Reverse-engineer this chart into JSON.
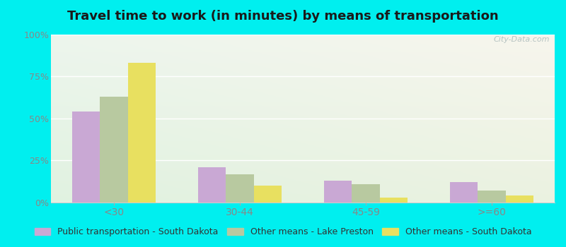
{
  "title": "Travel time to work (in minutes) by means of transportation",
  "categories": [
    "<30",
    "30-44",
    "45-59",
    ">=60"
  ],
  "series": [
    {
      "name": "Public transportation - South Dakota",
      "color": "#c9a8d4",
      "values": [
        54,
        21,
        13,
        12
      ]
    },
    {
      "name": "Other means - Lake Preston",
      "color": "#b8c9a0",
      "values": [
        63,
        17,
        11,
        7
      ]
    },
    {
      "name": "Other means - South Dakota",
      "color": "#e8e060",
      "values": [
        83,
        10,
        3,
        4
      ]
    }
  ],
  "ylim": [
    0,
    100
  ],
  "yticks": [
    0,
    25,
    50,
    75,
    100
  ],
  "ytick_labels": [
    "0%",
    "25%",
    "50%",
    "75%",
    "100%"
  ],
  "bg_color_topleft": "#e0f0e8",
  "bg_color_bottomright": "#f8fff4",
  "outer_background": "#00EFEF",
  "bar_width": 0.22,
  "title_fontsize": 13,
  "legend_fontsize": 9,
  "tick_label_color": "#888888",
  "watermark_text": "City-Data.com",
  "watermark_color": "#b0bebe"
}
